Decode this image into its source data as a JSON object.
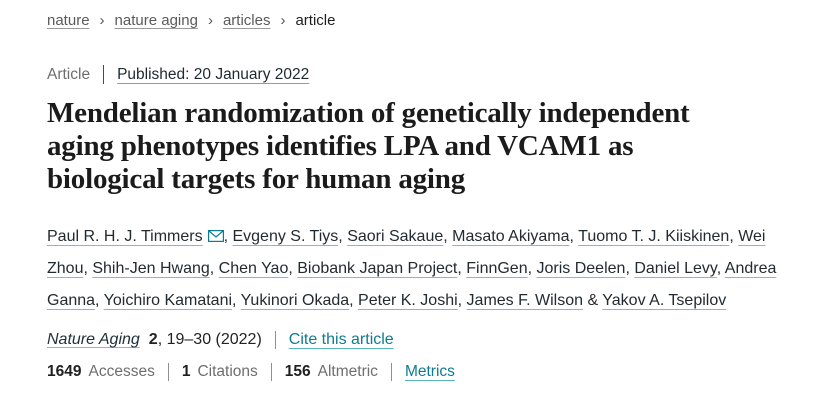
{
  "colors": {
    "link_teal": "#0e7c90",
    "underline_teal": "#57b2c1",
    "dark_text": "#222222",
    "gray_text": "#6e6e6e"
  },
  "breadcrumb": {
    "separator": "›",
    "items": [
      {
        "label": "nature",
        "is_link": true
      },
      {
        "label": "nature aging",
        "is_link": true
      },
      {
        "label": "articles",
        "is_link": true
      },
      {
        "label": "article",
        "is_link": false
      }
    ]
  },
  "header": {
    "article_type": "Article",
    "published_link": "Published: 20 January 2022"
  },
  "title_lines": [
    "Mendelian randomization of genetically independent",
    "aging phenotypes identifies LPA and VCAM1 as",
    "biological targets for human aging"
  ],
  "authors": {
    "conjunction": "&",
    "email_icon": "envelope-icon",
    "names": [
      {
        "name": "Paul R. H. J. Timmers",
        "has_email_icon": true
      },
      {
        "name": "Evgeny S. Tiys"
      },
      {
        "name": "Saori Sakaue"
      },
      {
        "name": "Masato Akiyama"
      },
      {
        "name": "Tuomo T. J. Kiiskinen"
      },
      {
        "name": "Wei Zhou"
      },
      {
        "name": "Shih-Jen Hwang"
      },
      {
        "name": "Chen Yao"
      },
      {
        "name": "Biobank Japan Project"
      },
      {
        "name": "FinnGen"
      },
      {
        "name": "Joris Deelen"
      },
      {
        "name": "Daniel Levy"
      },
      {
        "name": "Andrea Ganna"
      },
      {
        "name": "Yoichiro Kamatani"
      },
      {
        "name": "Yukinori Okada"
      },
      {
        "name": "Peter K. Joshi"
      },
      {
        "name": "James F. Wilson"
      },
      {
        "name": "Yakov A. Tsepilov"
      }
    ]
  },
  "journal": {
    "name": "Nature Aging",
    "volume": "2",
    "pages_year": ", 19–30 (2022)",
    "cite_link": "Cite this article"
  },
  "metrics": {
    "items": [
      {
        "value": "1649",
        "label": "Accesses"
      },
      {
        "value": "1",
        "label": "Citations"
      },
      {
        "value": "156",
        "label": "Altmetric"
      }
    ],
    "link_label": "Metrics"
  }
}
